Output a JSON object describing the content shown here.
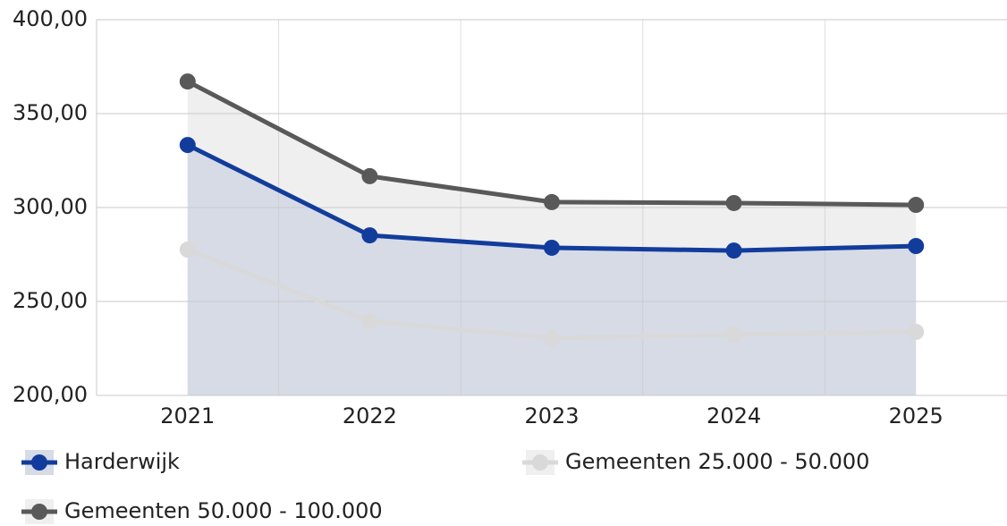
{
  "chart_data": {
    "type": "line",
    "categories": [
      "2021",
      "2022",
      "2023",
      "2024",
      "2025"
    ],
    "series": [
      {
        "name": "Harderwijk",
        "color": "#123c9c",
        "area_color": "#d6dbe6",
        "values": [
          333.3,
          285.2,
          278.6,
          277.1,
          279.5
        ]
      },
      {
        "name": "Gemeenten 25.000 - 50.000",
        "color": "#d9d9d9",
        "area_color": "#efefef",
        "values": [
          277.6,
          239.5,
          230.5,
          232.4,
          233.8
        ]
      },
      {
        "name": "Gemeenten 50.000 - 100.000",
        "color": "#595959",
        "area_color": "#efefef",
        "values": [
          367.1,
          316.7,
          302.9,
          302.4,
          301.4
        ]
      }
    ],
    "ylim": [
      200,
      400
    ],
    "yticks": [
      {
        "value": 200,
        "label": "200,00"
      },
      {
        "value": 250,
        "label": "250,00"
      },
      {
        "value": 300,
        "label": "300,00"
      },
      {
        "value": 350,
        "label": "350,00"
      },
      {
        "value": 400,
        "label": "400,00"
      }
    ],
    "grid": true
  }
}
